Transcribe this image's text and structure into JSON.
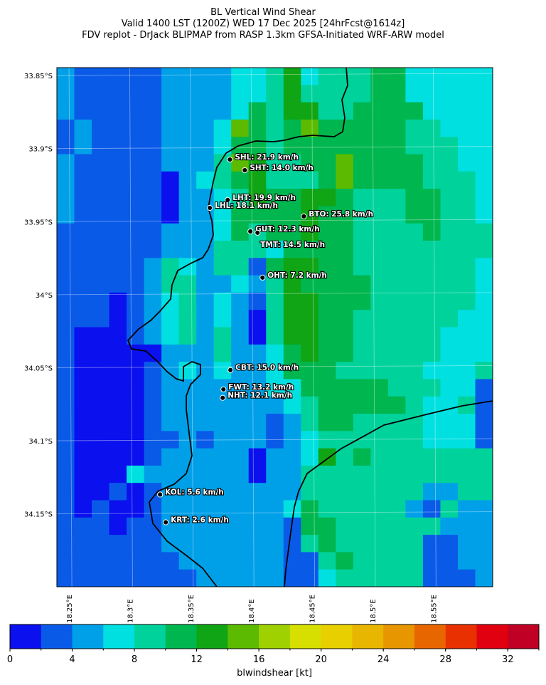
{
  "chart_data": {
    "type": "heatmap",
    "title": "BL Vertical Wind Shear",
    "subtitle": "Valid 1400 LST (1200Z) WED 17 Dec 2025 [24hrFcst@1614z]",
    "caption": "FDV replot - DrJack BLIPMAP from RASP 1.3km GFSA-Initiated WRF-ARW model",
    "xlim": [
      18.24,
      18.599
    ],
    "ylim": [
      33.8446,
      34.1999
    ],
    "xticks": [
      {
        "value": 18.25,
        "label": "18.25°E"
      },
      {
        "value": 18.3,
        "label": "18.3°E"
      },
      {
        "value": 18.35,
        "label": "18.35°E"
      },
      {
        "value": 18.4,
        "label": "18.4°E"
      },
      {
        "value": 18.45,
        "label": "18.45°E"
      },
      {
        "value": 18.5,
        "label": "18.5°E"
      },
      {
        "value": 18.55,
        "label": "18.55°E"
      }
    ],
    "yticks": [
      {
        "value": 33.85,
        "label": "33.85°S"
      },
      {
        "value": 33.9,
        "label": "33.9°S"
      },
      {
        "value": 33.95,
        "label": "33.95°S"
      },
      {
        "value": 34.0,
        "label": "34°S"
      },
      {
        "value": 34.05,
        "label": "34.05°S"
      },
      {
        "value": 34.1,
        "label": "34.1°S"
      },
      {
        "value": 34.15,
        "label": "34.15°S"
      }
    ],
    "grid": true,
    "values": [
      [
        5,
        3,
        3,
        3,
        3,
        3,
        5,
        5,
        5,
        5,
        7,
        7,
        9,
        13,
        7,
        9,
        9,
        9,
        11,
        11,
        7,
        7,
        7,
        7,
        7
      ],
      [
        5,
        3,
        3,
        3,
        3,
        3,
        5,
        5,
        5,
        5,
        7,
        7,
        9,
        13,
        9,
        9,
        9,
        9,
        11,
        11,
        7,
        7,
        7,
        7,
        7
      ],
      [
        5,
        3,
        3,
        3,
        3,
        3,
        5,
        5,
        5,
        5,
        7,
        11,
        9,
        13,
        13,
        9,
        9,
        11,
        11,
        11,
        11,
        7,
        7,
        7,
        7
      ],
      [
        3,
        5,
        3,
        3,
        3,
        3,
        5,
        5,
        5,
        7,
        15,
        11,
        9,
        11,
        15,
        11,
        11,
        11,
        11,
        11,
        9,
        9,
        7,
        7,
        7
      ],
      [
        3,
        5,
        3,
        3,
        3,
        3,
        5,
        5,
        5,
        7,
        11,
        11,
        9,
        11,
        11,
        11,
        11,
        11,
        11,
        11,
        9,
        9,
        9,
        7,
        7
      ],
      [
        5,
        3,
        3,
        3,
        3,
        3,
        5,
        5,
        5,
        9,
        15,
        13,
        9,
        9,
        11,
        11,
        15,
        11,
        11,
        11,
        11,
        9,
        9,
        7,
        7
      ],
      [
        5,
        3,
        3,
        3,
        3,
        3,
        1,
        5,
        7,
        9,
        11,
        13,
        9,
        9,
        9,
        11,
        15,
        11,
        11,
        11,
        11,
        9,
        9,
        9,
        7
      ],
      [
        5,
        3,
        3,
        3,
        3,
        3,
        1,
        5,
        5,
        7,
        9,
        13,
        11,
        11,
        13,
        13,
        11,
        9,
        9,
        9,
        11,
        11,
        9,
        9,
        7
      ],
      [
        5,
        3,
        3,
        3,
        3,
        3,
        1,
        5,
        5,
        7,
        11,
        11,
        11,
        11,
        13,
        11,
        11,
        9,
        9,
        9,
        11,
        11,
        9,
        9,
        7
      ],
      [
        3,
        3,
        3,
        3,
        3,
        3,
        5,
        5,
        5,
        7,
        11,
        9,
        11,
        11,
        13,
        11,
        11,
        9,
        9,
        9,
        9,
        11,
        9,
        9,
        9
      ],
      [
        3,
        3,
        3,
        3,
        3,
        3,
        5,
        5,
        5,
        9,
        9,
        9,
        7,
        11,
        11,
        11,
        11,
        9,
        9,
        9,
        9,
        9,
        9,
        9,
        9
      ],
      [
        3,
        3,
        3,
        3,
        3,
        5,
        9,
        7,
        5,
        9,
        9,
        3,
        11,
        13,
        13,
        11,
        11,
        9,
        9,
        9,
        9,
        9,
        9,
        9,
        7
      ],
      [
        3,
        3,
        3,
        3,
        3,
        5,
        9,
        9,
        5,
        5,
        7,
        5,
        9,
        13,
        11,
        11,
        11,
        11,
        9,
        9,
        9,
        9,
        9,
        9,
        7
      ],
      [
        3,
        3,
        3,
        1,
        3,
        5,
        7,
        9,
        5,
        7,
        5,
        3,
        9,
        13,
        13,
        11,
        11,
        11,
        9,
        9,
        9,
        9,
        9,
        9,
        7
      ],
      [
        3,
        3,
        3,
        1,
        3,
        5,
        7,
        9,
        5,
        7,
        5,
        1,
        9,
        13,
        13,
        11,
        11,
        9,
        9,
        9,
        9,
        9,
        9,
        7,
        7
      ],
      [
        3,
        1,
        1,
        1,
        3,
        5,
        7,
        9,
        5,
        9,
        5,
        1,
        9,
        13,
        13,
        11,
        11,
        9,
        9,
        9,
        9,
        9,
        7,
        7,
        7
      ],
      [
        3,
        1,
        1,
        1,
        1,
        1,
        5,
        5,
        5,
        9,
        5,
        5,
        7,
        11,
        13,
        11,
        11,
        9,
        9,
        9,
        9,
        9,
        7,
        7,
        7
      ],
      [
        3,
        1,
        1,
        1,
        1,
        3,
        5,
        7,
        5,
        7,
        5,
        5,
        7,
        11,
        11,
        11,
        9,
        9,
        9,
        9,
        9,
        7,
        7,
        7,
        9
      ],
      [
        3,
        1,
        1,
        1,
        1,
        3,
        5,
        5,
        5,
        5,
        5,
        5,
        7,
        7,
        11,
        11,
        11,
        11,
        11,
        9,
        9,
        9,
        7,
        7,
        3
      ],
      [
        3,
        1,
        1,
        1,
        1,
        3,
        5,
        5,
        5,
        5,
        5,
        5,
        5,
        7,
        9,
        11,
        11,
        11,
        11,
        11,
        9,
        7,
        7,
        9,
        3
      ],
      [
        3,
        1,
        1,
        1,
        1,
        3,
        5,
        5,
        5,
        5,
        5,
        5,
        3,
        5,
        9,
        11,
        11,
        9,
        9,
        9,
        9,
        7,
        7,
        7,
        3
      ],
      [
        3,
        1,
        1,
        1,
        1,
        3,
        3,
        5,
        3,
        5,
        5,
        5,
        3,
        5,
        7,
        9,
        9,
        9,
        9,
        9,
        9,
        7,
        7,
        7,
        3
      ],
      [
        3,
        1,
        1,
        1,
        1,
        3,
        5,
        5,
        5,
        5,
        5,
        1,
        5,
        5,
        7,
        13,
        9,
        11,
        9,
        9,
        9,
        9,
        9,
        9,
        9
      ],
      [
        3,
        1,
        1,
        1,
        7,
        5,
        5,
        5,
        5,
        5,
        5,
        1,
        5,
        5,
        9,
        9,
        9,
        9,
        9,
        9,
        9,
        9,
        9,
        9,
        9
      ],
      [
        3,
        1,
        1,
        3,
        1,
        3,
        5,
        5,
        5,
        5,
        5,
        5,
        5,
        5,
        9,
        9,
        9,
        9,
        9,
        9,
        9,
        5,
        5,
        9,
        9
      ],
      [
        3,
        1,
        3,
        1,
        1,
        3,
        5,
        5,
        5,
        5,
        5,
        5,
        5,
        7,
        11,
        9,
        9,
        9,
        9,
        9,
        5,
        3,
        9,
        5,
        5
      ],
      [
        3,
        3,
        3,
        1,
        3,
        3,
        5,
        5,
        5,
        5,
        5,
        5,
        5,
        3,
        11,
        11,
        9,
        9,
        9,
        9,
        9,
        9,
        5,
        5,
        5
      ],
      [
        3,
        3,
        3,
        3,
        3,
        3,
        5,
        5,
        5,
        5,
        5,
        5,
        5,
        3,
        9,
        11,
        9,
        9,
        9,
        9,
        9,
        3,
        3,
        5,
        5
      ],
      [
        3,
        3,
        3,
        3,
        3,
        3,
        3,
        5,
        5,
        5,
        5,
        5,
        5,
        3,
        3,
        9,
        11,
        9,
        9,
        9,
        9,
        3,
        3,
        5,
        5
      ],
      [
        3,
        3,
        3,
        3,
        3,
        3,
        3,
        3,
        5,
        5,
        5,
        5,
        5,
        3,
        3,
        7,
        9,
        9,
        9,
        9,
        9,
        3,
        3,
        3,
        5
      ]
    ],
    "stations": [
      {
        "label": "SHL: 21.9 km/h",
        "lon": 18.3825,
        "lat": 33.9075
      },
      {
        "label": "SHT: 14.0 km/h",
        "lon": 18.3948,
        "lat": 33.9148
      },
      {
        "label": "LHT: 19.9 km/h",
        "lon": 18.3807,
        "lat": 33.9352
      },
      {
        "label": "LHL: 18.1 km/h",
        "lon": 18.366,
        "lat": 33.9406
      },
      {
        "label": "BTO: 25.8 km/h",
        "lon": 18.4434,
        "lat": 33.9464
      },
      {
        "label": "GUT: 12.3 km/h",
        "lon": 18.3994,
        "lat": 33.9567
      },
      {
        "label": "TMT: 14.5 km/h",
        "lon": 18.4053,
        "lat": 33.9576
      },
      {
        "label": "OHT: 7.2 km/h",
        "lon": 18.4094,
        "lat": 33.9883
      },
      {
        "label": "CBT: 15.0 km/h",
        "lon": 18.383,
        "lat": 34.0516
      },
      {
        "label": "FWT: 13.2 km/h",
        "lon": 18.3772,
        "lat": 34.0648
      },
      {
        "label": "NHT: 12.1 km/h",
        "lon": 18.3766,
        "lat": 34.0706
      },
      {
        "label": "KOL: 5.6 km/h",
        "lon": 18.325,
        "lat": 34.1368
      },
      {
        "label": "KRT: 2.6 km/h",
        "lon": 18.3297,
        "lat": 34.1558
      }
    ],
    "colorbar": {
      "label": "blwindshear [kt]",
      "levels": [
        0,
        2,
        4,
        6,
        8,
        10,
        12,
        14,
        16,
        18,
        20,
        22,
        24,
        26,
        28,
        30,
        32,
        34
      ],
      "colors": [
        "#0a10ee",
        "#0a5ae8",
        "#00a0e8",
        "#00e0e0",
        "#00d29c",
        "#00b64e",
        "#10a514",
        "#5cbb00",
        "#9fd000",
        "#d6df00",
        "#e8cf00",
        "#e8b600",
        "#e89600",
        "#e86600",
        "#e83000",
        "#e00010",
        "#c00025"
      ],
      "ticks": [
        0,
        4,
        8,
        12,
        16,
        20,
        24,
        28,
        32
      ]
    }
  }
}
